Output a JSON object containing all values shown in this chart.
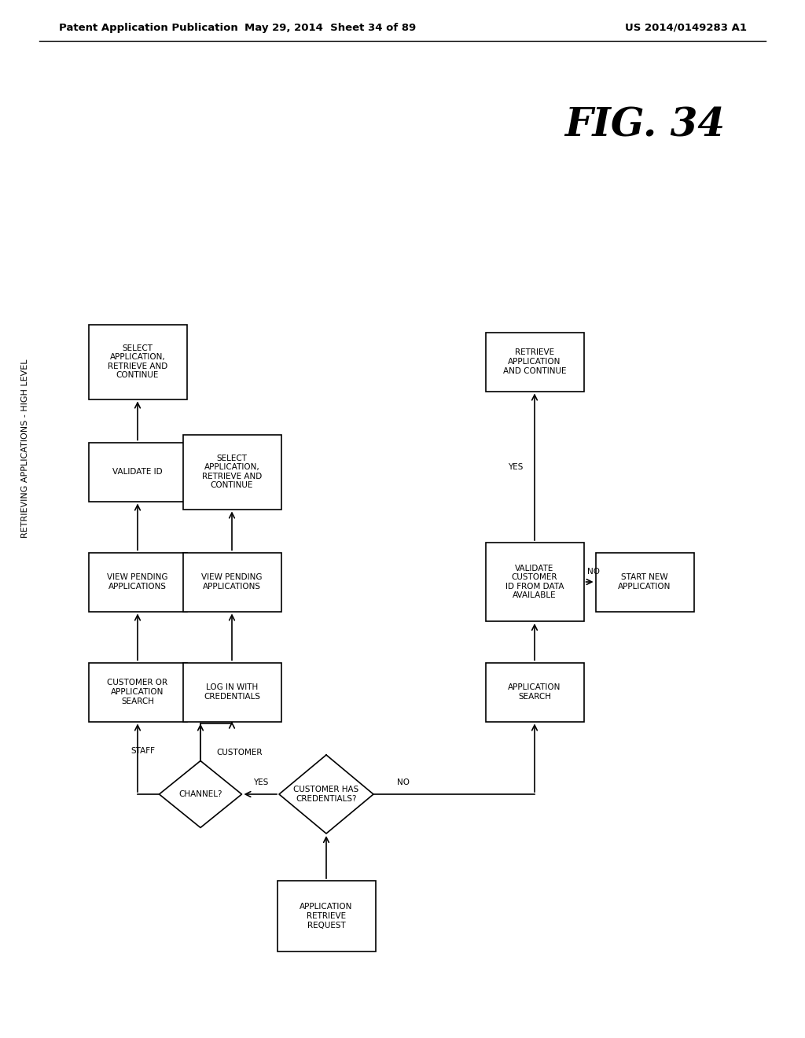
{
  "header_left": "Patent Application Publication",
  "header_mid": "May 29, 2014  Sheet 34 of 89",
  "header_right": "US 2014/0149283 A1",
  "fig_label": "FIG. 34",
  "vertical_label": "RETRIEVING APPLICATIONS - HIGH LEVEL"
}
